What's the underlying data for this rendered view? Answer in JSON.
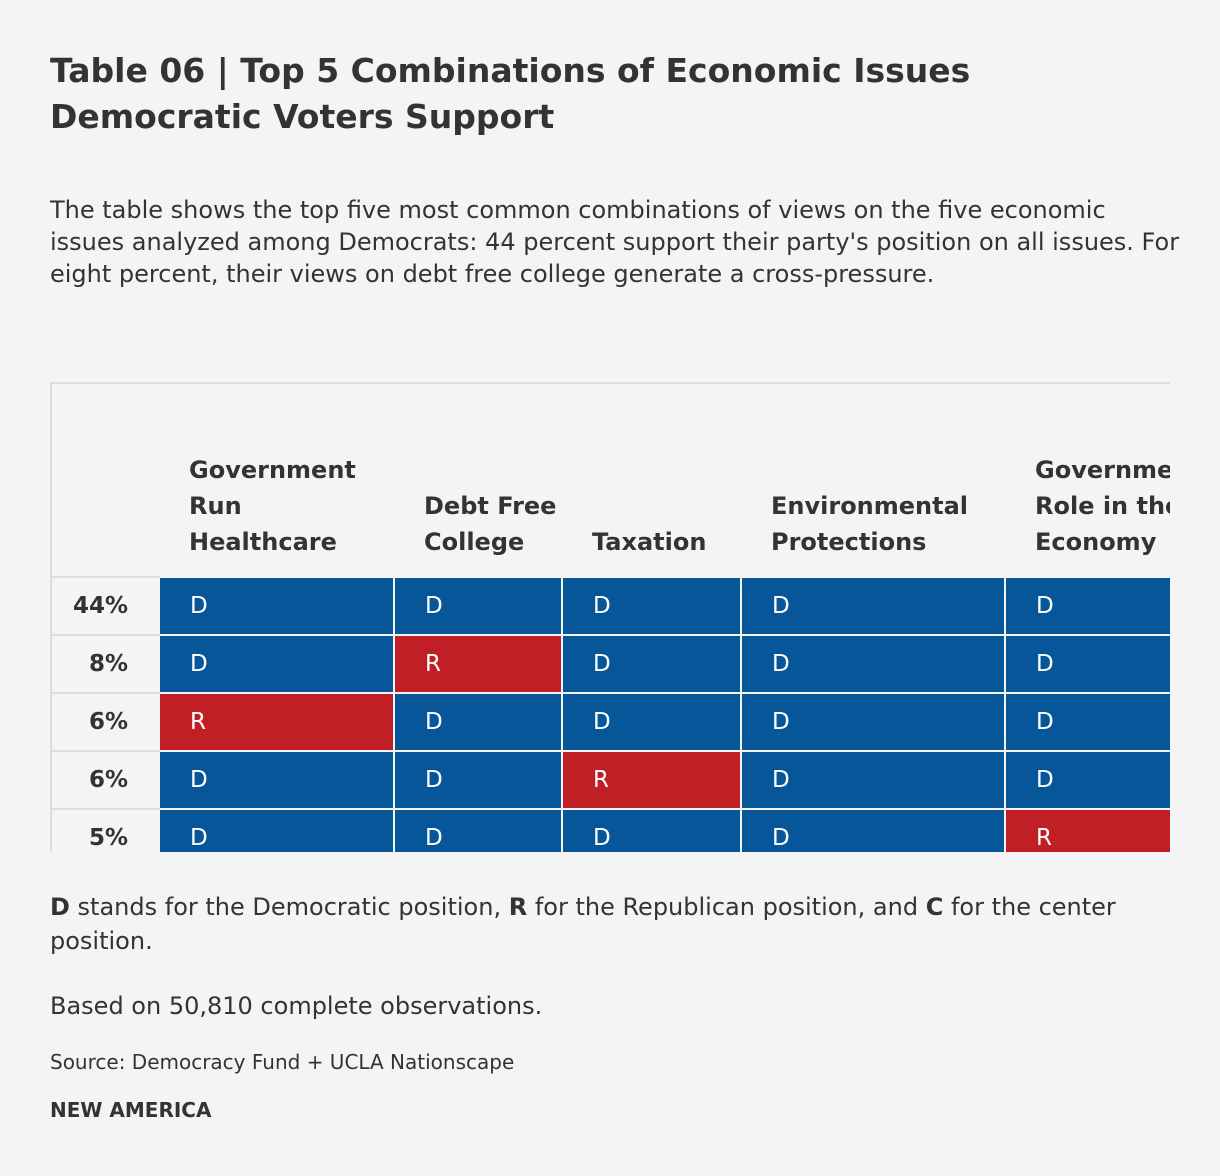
{
  "header": {
    "title": "Table 06 | Top 5 Combinations of Economic Issues Democratic Voters Support",
    "description": "The table shows the top five most common combinations of views on the five economic issues analyzed among Democrats: 44 percent support their party's position on all issues. For eight percent, their views on debt free college generate a cross-pressure."
  },
  "table": {
    "columns": [
      "Government Run Healthcare",
      "Debt Free College",
      "Taxation",
      "Environmental Protections",
      "Government Role in the Economy"
    ],
    "rows": [
      {
        "share": "44%",
        "cells": [
          "D",
          "D",
          "D",
          "D",
          "D"
        ]
      },
      {
        "share": "8%",
        "cells": [
          "D",
          "R",
          "D",
          "D",
          "D"
        ]
      },
      {
        "share": "6%",
        "cells": [
          "R",
          "D",
          "D",
          "D",
          "D"
        ]
      },
      {
        "share": "6%",
        "cells": [
          "D",
          "D",
          "R",
          "D",
          "D"
        ]
      },
      {
        "share": "5%",
        "cells": [
          "D",
          "D",
          "D",
          "D",
          "R"
        ]
      }
    ],
    "colors": {
      "D": "#07569a",
      "R": "#c11f26"
    }
  },
  "footer": {
    "note": [
      {
        "text": "D",
        "bold": true
      },
      {
        "text": " stands for the Democratic position, ",
        "bold": false
      },
      {
        "text": "R",
        "bold": true
      },
      {
        "text": " for the Republican position, and ",
        "bold": false
      },
      {
        "text": "C",
        "bold": true
      },
      {
        "text": " for the center position.",
        "bold": false
      }
    ],
    "observations": "Based on 50,810 complete observations.",
    "source": "Source: Democracy Fund + UCLA Nationscape",
    "brand": "NEW AMERICA"
  }
}
